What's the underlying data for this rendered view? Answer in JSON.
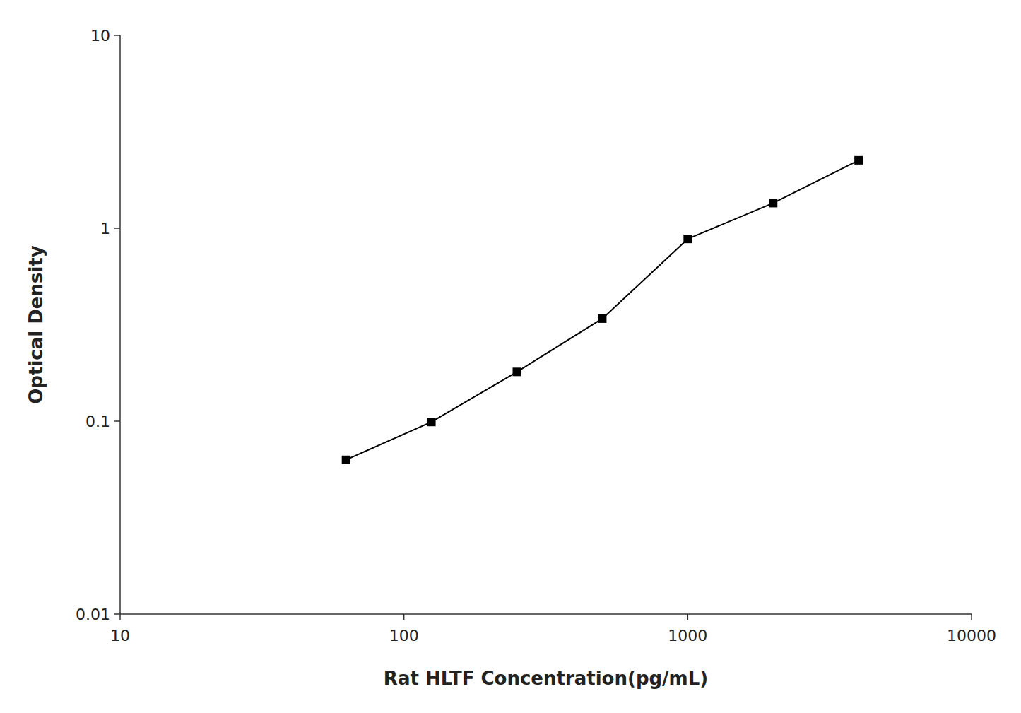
{
  "chart_data": {
    "type": "line",
    "x": [
      62.5,
      125,
      250,
      500,
      1000,
      2000,
      4000
    ],
    "values": [
      0.063,
      0.099,
      0.18,
      0.34,
      0.88,
      1.35,
      2.25
    ],
    "xlabel": "Rat HLTF Concentration(pg/mL)",
    "ylabel": "Optical Density",
    "xlim": [
      10,
      10000
    ],
    "ylim": [
      0.01,
      10
    ],
    "xticks": [
      10,
      100,
      1000,
      10000
    ],
    "yticks": [
      0.01,
      0.1,
      1,
      10
    ],
    "log": true,
    "grid": false,
    "color": "#000000",
    "marker": "square"
  }
}
